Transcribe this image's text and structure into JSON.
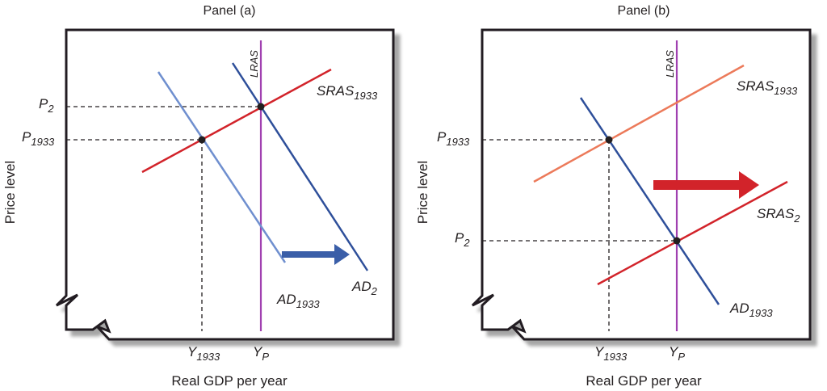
{
  "panels": [
    {
      "title": "Panel (a)",
      "ylabel": "Price level",
      "xlabel": "Real GDP per year",
      "lras": "LRAS",
      "sras": {
        "base": "SRAS",
        "sub": "1933"
      },
      "ad1": {
        "base": "AD",
        "sub": "1933"
      },
      "ad2": {
        "base": "AD",
        "sub": "2"
      },
      "p1": {
        "base": "P",
        "sub": "1933"
      },
      "p2": {
        "base": "P",
        "sub": "2"
      },
      "y1": {
        "base": "Y",
        "sub": "1933"
      },
      "yp": {
        "base": "Y",
        "sub": "P"
      }
    },
    {
      "title": "Panel (b)",
      "ylabel": "Price level",
      "xlabel": "Real GDP per year",
      "lras": "LRAS",
      "sras1": {
        "base": "SRAS",
        "sub": "1933"
      },
      "sras2": {
        "base": "SRAS",
        "sub": "2"
      },
      "ad1": {
        "base": "AD",
        "sub": "1933"
      },
      "p1": {
        "base": "P",
        "sub": "1933"
      },
      "p2": {
        "base": "P",
        "sub": "2"
      },
      "y1": {
        "base": "Y",
        "sub": "1933"
      },
      "yp": {
        "base": "Y",
        "sub": "P"
      }
    }
  ],
  "colors": {
    "lras": "#a040b0",
    "sras": "#d2232a",
    "sras_light": "#ec7a5a",
    "ad_dark": "#2e4f9a",
    "ad_light": "#6f8fcf",
    "arrow_blue": "#3a5ea8",
    "arrow_red": "#d2232a",
    "axis": "#231f20"
  }
}
